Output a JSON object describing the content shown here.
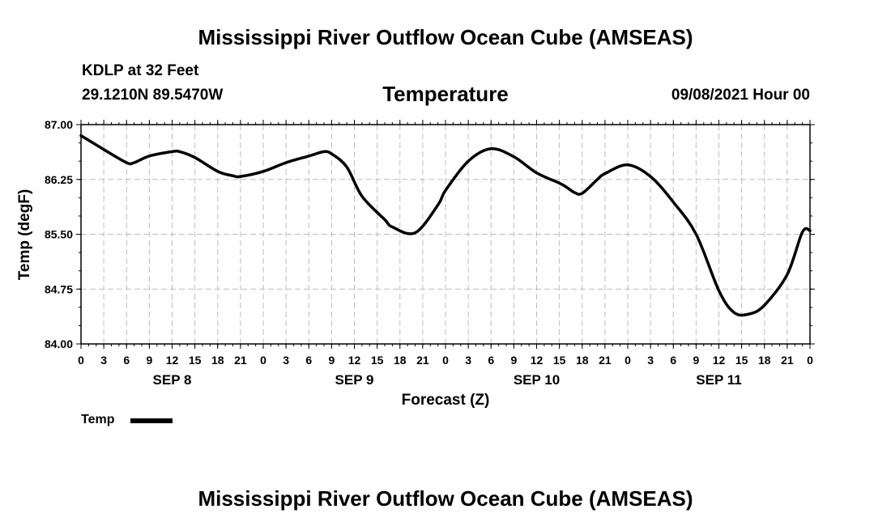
{
  "header": {
    "main_title": "Mississippi River Outflow Ocean Cube (AMSEAS)",
    "station": "KDLP at 32 Feet",
    "coords": "29.1210N  89.5470W",
    "variable": "Temperature",
    "run": "09/08/2021 Hour 00"
  },
  "footer": {
    "title": "Mississippi River Outflow Ocean Cube (AMSEAS)"
  },
  "legend": {
    "label": "Temp"
  },
  "chart_data": {
    "type": "line",
    "title": "Temperature",
    "xlabel": "Forecast (Z)",
    "ylabel": "Temp (degF)",
    "ylim": [
      84.0,
      87.0
    ],
    "xlim": [
      0,
      96
    ],
    "y_ticks": [
      "84.00",
      "84.75",
      "85.50",
      "86.25",
      "87.00"
    ],
    "x_tick_labels": [
      "0",
      "3",
      "6",
      "9",
      "12",
      "15",
      "18",
      "21",
      "0",
      "3",
      "6",
      "9",
      "12",
      "15",
      "18",
      "21",
      "0",
      "3",
      "6",
      "9",
      "12",
      "15",
      "18",
      "21",
      "0",
      "3",
      "6",
      "9",
      "12",
      "15",
      "18",
      "21",
      "0"
    ],
    "day_labels": [
      {
        "label": "SEP 8",
        "hour": 12
      },
      {
        "label": "SEP 9",
        "hour": 36
      },
      {
        "label": "SEP 10",
        "hour": 60
      },
      {
        "label": "SEP 11",
        "hour": 84
      }
    ],
    "grid": true,
    "series": [
      {
        "name": "Temp",
        "color": "#000000",
        "hours": [
          0,
          3,
          6,
          7,
          9,
          12,
          13,
          15,
          18,
          20,
          21,
          24,
          27,
          30,
          32,
          33,
          35,
          37,
          40,
          41,
          44,
          47,
          48,
          51,
          54,
          57,
          60,
          63,
          64,
          65,
          66,
          68,
          69,
          72,
          75,
          78,
          81,
          84,
          86,
          88,
          90,
          93,
          95,
          96
        ],
        "values": [
          86.85,
          86.66,
          86.48,
          86.48,
          86.57,
          86.63,
          86.63,
          86.55,
          86.36,
          86.3,
          86.29,
          86.36,
          86.48,
          86.57,
          86.63,
          86.6,
          86.42,
          86.02,
          85.7,
          85.6,
          85.52,
          85.9,
          86.1,
          86.5,
          86.67,
          86.56,
          86.34,
          86.2,
          86.14,
          86.07,
          86.06,
          86.25,
          86.33,
          86.45,
          86.29,
          85.94,
          85.5,
          84.73,
          84.43,
          84.41,
          84.53,
          84.95,
          85.53,
          85.55
        ]
      }
    ]
  }
}
